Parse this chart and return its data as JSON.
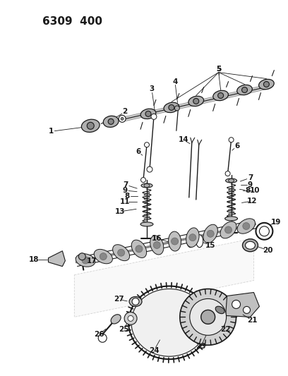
{
  "title": "6309  400",
  "bg": "#ffffff",
  "lc": "#1a1a1a",
  "fig_w": 4.08,
  "fig_h": 5.33,
  "dpi": 100
}
